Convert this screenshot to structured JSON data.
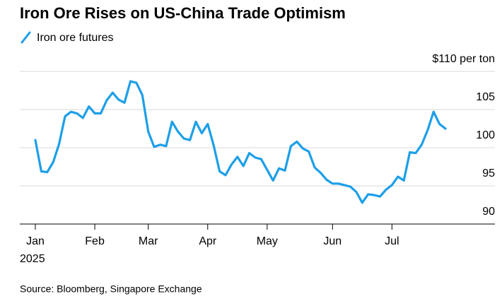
{
  "chart_data": {
    "type": "line",
    "title": "Iron Ore Rises on US-China Trade Optimism",
    "source": "Source: Bloomberg, Singapore Exchange",
    "year_label": "2025",
    "categories": [
      "Jan",
      null,
      null,
      null,
      null,
      null,
      null,
      null,
      null,
      null,
      "Feb",
      null,
      null,
      null,
      null,
      null,
      null,
      null,
      null,
      "Mar",
      null,
      null,
      null,
      null,
      null,
      null,
      null,
      null,
      null,
      "Apr",
      null,
      null,
      null,
      null,
      null,
      null,
      null,
      null,
      null,
      "May",
      null,
      null,
      null,
      null,
      null,
      null,
      null,
      null,
      null,
      null,
      "Jun",
      null,
      null,
      null,
      null,
      null,
      null,
      null,
      null,
      null,
      "Jul",
      null,
      null,
      null,
      null,
      null,
      null,
      null,
      null,
      null
    ],
    "series": [
      {
        "name": "Iron ore futures",
        "color": "#1c9fe8",
        "values": [
          101.0,
          96.9,
          96.8,
          98.1,
          100.5,
          104.1,
          104.7,
          104.5,
          103.9,
          105.4,
          104.5,
          104.5,
          106.2,
          107.2,
          106.3,
          105.9,
          108.7,
          108.5,
          106.9,
          102.1,
          100.1,
          100.4,
          100.2,
          103.4,
          102.1,
          101.2,
          101.0,
          103.4,
          101.9,
          103.1,
          100.3,
          96.9,
          96.4,
          97.8,
          98.8,
          97.6,
          99.3,
          98.7,
          98.5,
          97.1,
          95.7,
          97.3,
          97.0,
          100.2,
          100.8,
          99.9,
          99.5,
          97.4,
          96.7,
          95.8,
          95.3,
          95.3,
          95.1,
          94.9,
          94.2,
          92.8,
          93.9,
          93.8,
          93.6,
          94.5,
          95.1,
          96.2,
          95.7,
          99.4,
          99.3,
          100.4,
          102.3,
          104.7,
          103.1,
          102.5
        ]
      }
    ],
    "ylim": [
      90,
      110
    ],
    "yticks": [
      90,
      95,
      100,
      105,
      {
        "value": 110,
        "label": "$110 per ton"
      }
    ],
    "grid": true
  }
}
